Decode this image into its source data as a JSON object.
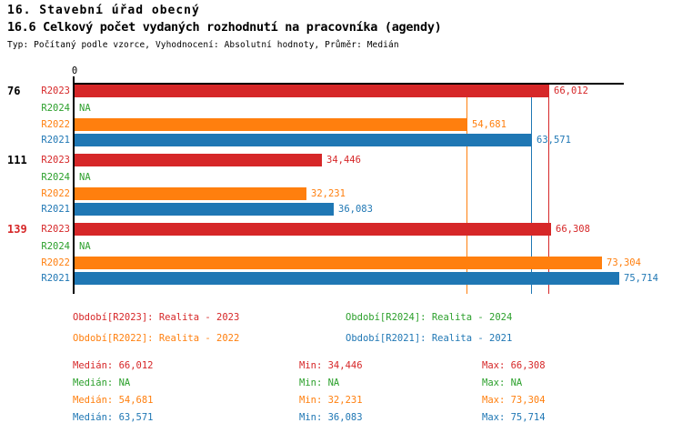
{
  "header": {
    "title": "16. Stavební úřad obecný",
    "subtitle": "16.6 Celkový počet vydaných rozhodnutí na pracovníka (agendy)",
    "meta": "Typ: Počítaný podle vzorce, Vyhodnocení: Absolutní hodnoty, Průměr: Medián"
  },
  "chart_data": {
    "type": "bar",
    "orientation": "horizontal",
    "x_axis": {
      "origin_label": "0",
      "xlim": [
        0,
        76500
      ],
      "gridlines": false
    },
    "series_colors": {
      "R2023": "#d62728",
      "R2024": "#2ca02c",
      "R2022": "#ff7f0e",
      "R2021": "#1f77b4"
    },
    "median_lines": [
      {
        "series": "R2022",
        "value": 54681,
        "color": "#ff7f0e"
      },
      {
        "series": "R2021",
        "value": 63571,
        "color": "#1f77b4"
      },
      {
        "series": "R2023",
        "value": 66012,
        "color": "#d62728"
      }
    ],
    "groups": [
      {
        "label": "76",
        "label_color": "#000000",
        "rows": [
          {
            "series": "R2023",
            "value": 66012,
            "display": "66,012"
          },
          {
            "series": "R2024",
            "value": null,
            "display": "NA"
          },
          {
            "series": "R2022",
            "value": 54681,
            "display": "54,681"
          },
          {
            "series": "R2021",
            "value": 63571,
            "display": "63,571"
          }
        ]
      },
      {
        "label": "111",
        "label_color": "#000000",
        "rows": [
          {
            "series": "R2023",
            "value": 34446,
            "display": "34,446"
          },
          {
            "series": "R2024",
            "value": null,
            "display": "NA"
          },
          {
            "series": "R2022",
            "value": 32231,
            "display": "32,231"
          },
          {
            "series": "R2021",
            "value": 36083,
            "display": "36,083"
          }
        ]
      },
      {
        "label": "139",
        "label_color": "#d62728",
        "rows": [
          {
            "series": "R2023",
            "value": 66308,
            "display": "66,308"
          },
          {
            "series": "R2024",
            "value": null,
            "display": "NA"
          },
          {
            "series": "R2022",
            "value": 73304,
            "display": "73,304"
          },
          {
            "series": "R2021",
            "value": 75714,
            "display": "75,714"
          }
        ]
      }
    ]
  },
  "legend": {
    "items": [
      {
        "label": "Období[R2023]: Realita - 2023",
        "color": "#d62728"
      },
      {
        "label": "Období[R2024]: Realita - 2024",
        "color": "#2ca02c"
      },
      {
        "label": "Období[R2022]: Realita - 2022",
        "color": "#ff7f0e"
      },
      {
        "label": "Období[R2021]: Realita - 2021",
        "color": "#1f77b4"
      }
    ]
  },
  "stats": {
    "rows": [
      {
        "color": "#d62728",
        "median": "Medián: 66,012",
        "min": "Min: 34,446",
        "max": "Max: 66,308"
      },
      {
        "color": "#2ca02c",
        "median": "Medián: NA",
        "min": "Min: NA",
        "max": "Max: NA"
      },
      {
        "color": "#ff7f0e",
        "median": "Medián: 54,681",
        "min": "Min: 32,231",
        "max": "Max: 73,304"
      },
      {
        "color": "#1f77b4",
        "median": "Medián: 63,571",
        "min": "Min: 36,083",
        "max": "Max: 75,714"
      }
    ]
  }
}
